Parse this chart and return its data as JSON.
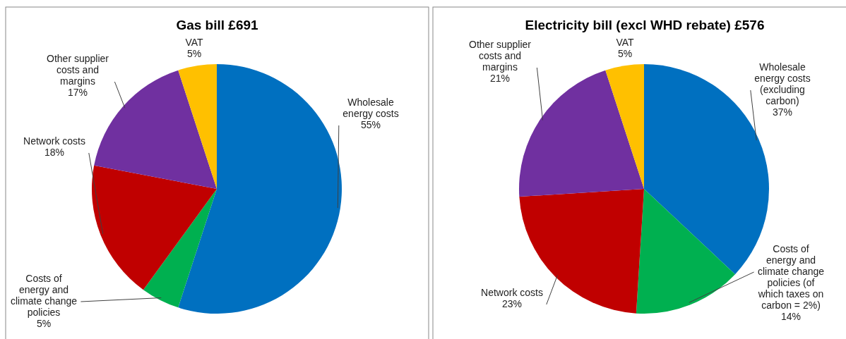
{
  "chart_data": [
    {
      "type": "pie",
      "title": "Gas bill £691",
      "categories": [
        "Wholesale\nenergy costs",
        "Costs of\nenergy and\nclimate change\npolicies",
        "Network costs",
        "Other supplier\ncosts and\nmargins",
        "VAT"
      ],
      "values": [
        55,
        5,
        18,
        17,
        5
      ],
      "value_labels": [
        "55%",
        "5%",
        "18%",
        "17%",
        "5%"
      ],
      "colors": [
        "#0070c0",
        "#00b050",
        "#c00000",
        "#7030a0",
        "#ffc000"
      ]
    },
    {
      "type": "pie",
      "title": "Electricity  bill  (excl WHD rebate) £576",
      "categories": [
        "Wholesale\nenergy costs\n(excluding\ncarbon)",
        "Costs of\nenergy and\nclimate change\npolicies (of\nwhich taxes on\ncarbon = 2%)",
        "Network costs",
        "Other supplier\ncosts and\nmargins",
        "VAT"
      ],
      "values": [
        37,
        14,
        23,
        21,
        5
      ],
      "value_labels": [
        "37%",
        "14%",
        "23%",
        "21%",
        "5%"
      ],
      "colors": [
        "#0070c0",
        "#00b050",
        "#c00000",
        "#7030a0",
        "#ffc000"
      ]
    }
  ]
}
